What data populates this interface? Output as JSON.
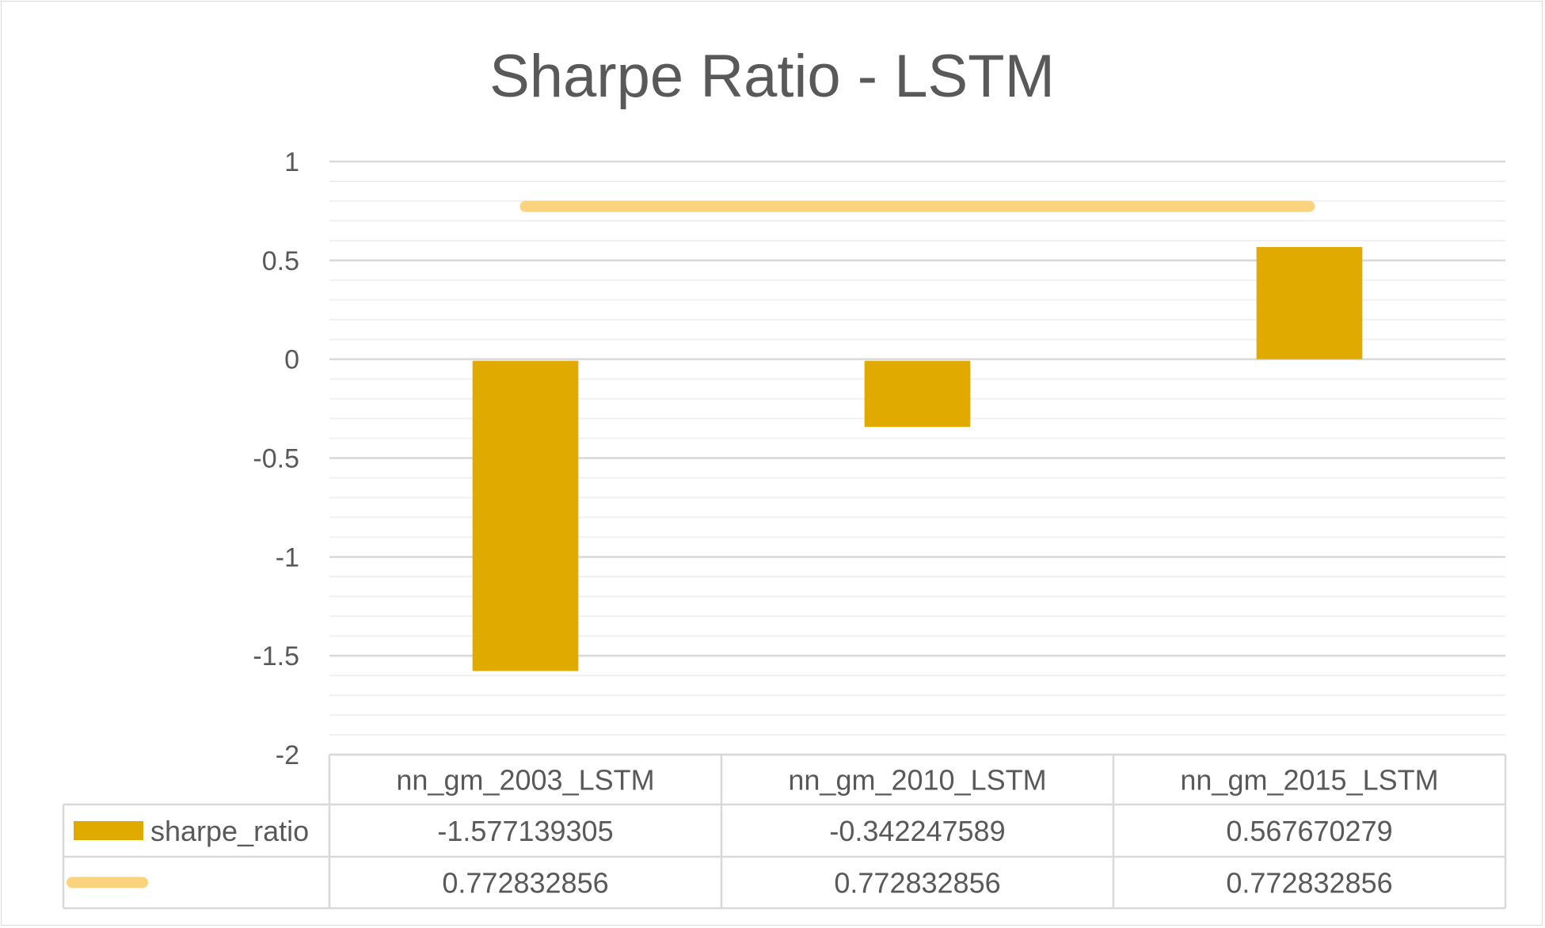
{
  "chart_data": {
    "type": "bar",
    "title": "Sharpe Ratio - LSTM",
    "categories": [
      "nn_gm_2003_LSTM",
      "nn_gm_2010_LSTM",
      "nn_gm_2015_LSTM"
    ],
    "series": [
      {
        "name": "sharpe_ratio",
        "type": "bar",
        "color": "#e1aa00",
        "values": [
          -1.577139305,
          -0.342247589,
          0.567670279
        ],
        "labels": [
          "-1.577139305",
          "-0.342247589",
          "0.567670279"
        ]
      },
      {
        "name": "",
        "type": "line",
        "color": "#fbd27e",
        "values": [
          0.772832856,
          0.772832856,
          0.772832856
        ],
        "labels": [
          "0.772832856",
          "0.772832856",
          "0.772832856"
        ]
      }
    ],
    "ylim": [
      -2,
      1
    ],
    "yticks": [
      1,
      0.5,
      0,
      -0.5,
      -1,
      -1.5,
      -2
    ],
    "ytick_labels": [
      "1",
      "0.5",
      "0",
      "-0.5",
      "-1",
      "-1.5",
      "-2"
    ],
    "grid": true,
    "legend": "data-table",
    "data_table": true
  }
}
